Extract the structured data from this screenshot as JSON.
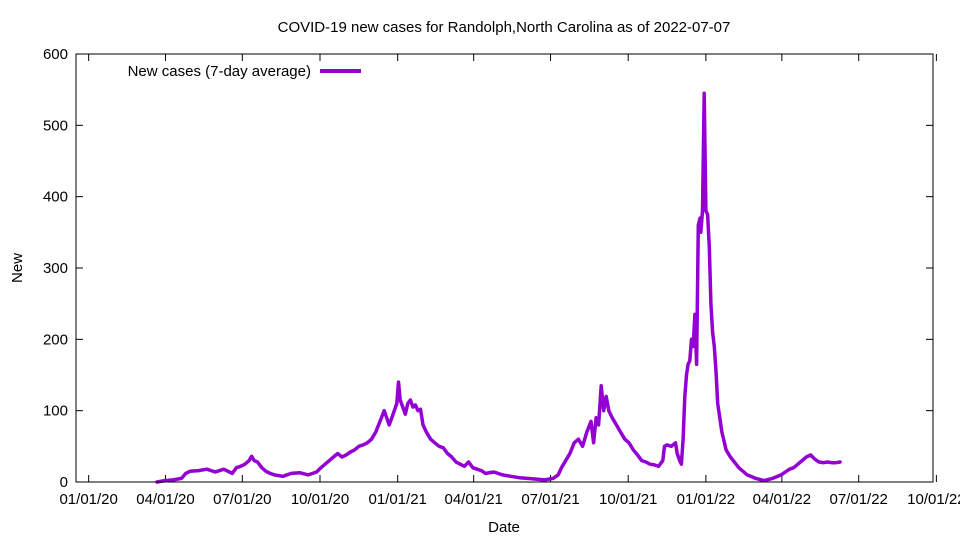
{
  "chart_data": {
    "type": "line",
    "title": "COVID-19 new cases for Randolph,North Carolina as of 2022-07-07",
    "xlabel": "Date",
    "ylabel": "New",
    "ylim": [
      0,
      600
    ],
    "yticks": [
      0,
      100,
      200,
      300,
      400,
      500,
      600
    ],
    "xticks": [
      "01/01/20",
      "04/01/20",
      "07/01/20",
      "10/01/20",
      "01/01/21",
      "04/01/21",
      "07/01/21",
      "10/01/21",
      "01/01/22",
      "04/01/22",
      "07/01/22",
      "10/01/22"
    ],
    "xlim_days": [
      -15,
      1000
    ],
    "legend": {
      "label": "New cases (7-day average)",
      "position": "top-left"
    },
    "series": [
      {
        "name": "New cases (7-day average)",
        "color": "#9400d3",
        "points": [
          [
            81,
            0
          ],
          [
            90,
            2
          ],
          [
            100,
            3
          ],
          [
            110,
            5
          ],
          [
            115,
            12
          ],
          [
            120,
            15
          ],
          [
            130,
            16
          ],
          [
            140,
            18
          ],
          [
            150,
            14
          ],
          [
            160,
            18
          ],
          [
            170,
            12
          ],
          [
            175,
            20
          ],
          [
            180,
            22
          ],
          [
            185,
            25
          ],
          [
            190,
            30
          ],
          [
            193,
            36
          ],
          [
            196,
            30
          ],
          [
            200,
            28
          ],
          [
            205,
            20
          ],
          [
            210,
            15
          ],
          [
            215,
            12
          ],
          [
            220,
            10
          ],
          [
            230,
            8
          ],
          [
            240,
            12
          ],
          [
            250,
            13
          ],
          [
            260,
            10
          ],
          [
            270,
            14
          ],
          [
            275,
            20
          ],
          [
            280,
            25
          ],
          [
            285,
            30
          ],
          [
            290,
            35
          ],
          [
            295,
            40
          ],
          [
            300,
            35
          ],
          [
            305,
            38
          ],
          [
            310,
            42
          ],
          [
            315,
            45
          ],
          [
            320,
            50
          ],
          [
            325,
            52
          ],
          [
            330,
            55
          ],
          [
            335,
            60
          ],
          [
            340,
            70
          ],
          [
            345,
            85
          ],
          [
            350,
            100
          ],
          [
            353,
            90
          ],
          [
            356,
            80
          ],
          [
            359,
            90
          ],
          [
            362,
            100
          ],
          [
            365,
            110
          ],
          [
            367,
            140
          ],
          [
            369,
            115
          ],
          [
            372,
            105
          ],
          [
            375,
            95
          ],
          [
            378,
            110
          ],
          [
            381,
            115
          ],
          [
            384,
            105
          ],
          [
            387,
            108
          ],
          [
            390,
            100
          ],
          [
            393,
            102
          ],
          [
            396,
            80
          ],
          [
            400,
            70
          ],
          [
            405,
            60
          ],
          [
            410,
            55
          ],
          [
            415,
            50
          ],
          [
            420,
            48
          ],
          [
            425,
            40
          ],
          [
            430,
            35
          ],
          [
            435,
            28
          ],
          [
            440,
            25
          ],
          [
            445,
            22
          ],
          [
            450,
            28
          ],
          [
            455,
            20
          ],
          [
            460,
            18
          ],
          [
            465,
            16
          ],
          [
            470,
            12
          ],
          [
            480,
            14
          ],
          [
            490,
            10
          ],
          [
            500,
            8
          ],
          [
            510,
            6
          ],
          [
            520,
            5
          ],
          [
            530,
            4
          ],
          [
            540,
            3
          ],
          [
            550,
            5
          ],
          [
            556,
            10
          ],
          [
            560,
            20
          ],
          [
            565,
            30
          ],
          [
            570,
            40
          ],
          [
            575,
            55
          ],
          [
            580,
            60
          ],
          [
            585,
            50
          ],
          [
            590,
            70
          ],
          [
            595,
            85
          ],
          [
            598,
            55
          ],
          [
            601,
            90
          ],
          [
            604,
            80
          ],
          [
            607,
            135
          ],
          [
            610,
            100
          ],
          [
            613,
            120
          ],
          [
            616,
            100
          ],
          [
            620,
            90
          ],
          [
            625,
            80
          ],
          [
            630,
            70
          ],
          [
            635,
            60
          ],
          [
            640,
            55
          ],
          [
            645,
            45
          ],
          [
            650,
            38
          ],
          [
            655,
            30
          ],
          [
            660,
            28
          ],
          [
            665,
            25
          ],
          [
            670,
            24
          ],
          [
            675,
            22
          ],
          [
            680,
            30
          ],
          [
            682,
            50
          ],
          [
            685,
            52
          ],
          [
            690,
            50
          ],
          [
            695,
            55
          ],
          [
            697,
            40
          ],
          [
            700,
            30
          ],
          [
            702,
            25
          ],
          [
            704,
            60
          ],
          [
            706,
            120
          ],
          [
            708,
            150
          ],
          [
            710,
            165
          ],
          [
            712,
            170
          ],
          [
            714,
            200
          ],
          [
            716,
            190
          ],
          [
            718,
            235
          ],
          [
            720,
            165
          ],
          [
            722,
            360
          ],
          [
            724,
            370
          ],
          [
            725,
            350
          ],
          [
            727,
            380
          ],
          [
            729,
            545
          ],
          [
            731,
            380
          ],
          [
            733,
            375
          ],
          [
            735,
            330
          ],
          [
            737,
            250
          ],
          [
            739,
            210
          ],
          [
            741,
            190
          ],
          [
            743,
            155
          ],
          [
            745,
            110
          ],
          [
            750,
            70
          ],
          [
            755,
            45
          ],
          [
            760,
            35
          ],
          [
            770,
            20
          ],
          [
            780,
            10
          ],
          [
            790,
            5
          ],
          [
            800,
            2
          ],
          [
            810,
            5
          ],
          [
            820,
            10
          ],
          [
            830,
            18
          ],
          [
            835,
            20
          ],
          [
            840,
            25
          ],
          [
            845,
            30
          ],
          [
            850,
            35
          ],
          [
            855,
            38
          ],
          [
            860,
            32
          ],
          [
            865,
            28
          ],
          [
            870,
            27
          ],
          [
            875,
            28
          ],
          [
            880,
            27
          ],
          [
            885,
            27
          ],
          [
            890,
            28
          ]
        ]
      }
    ]
  }
}
